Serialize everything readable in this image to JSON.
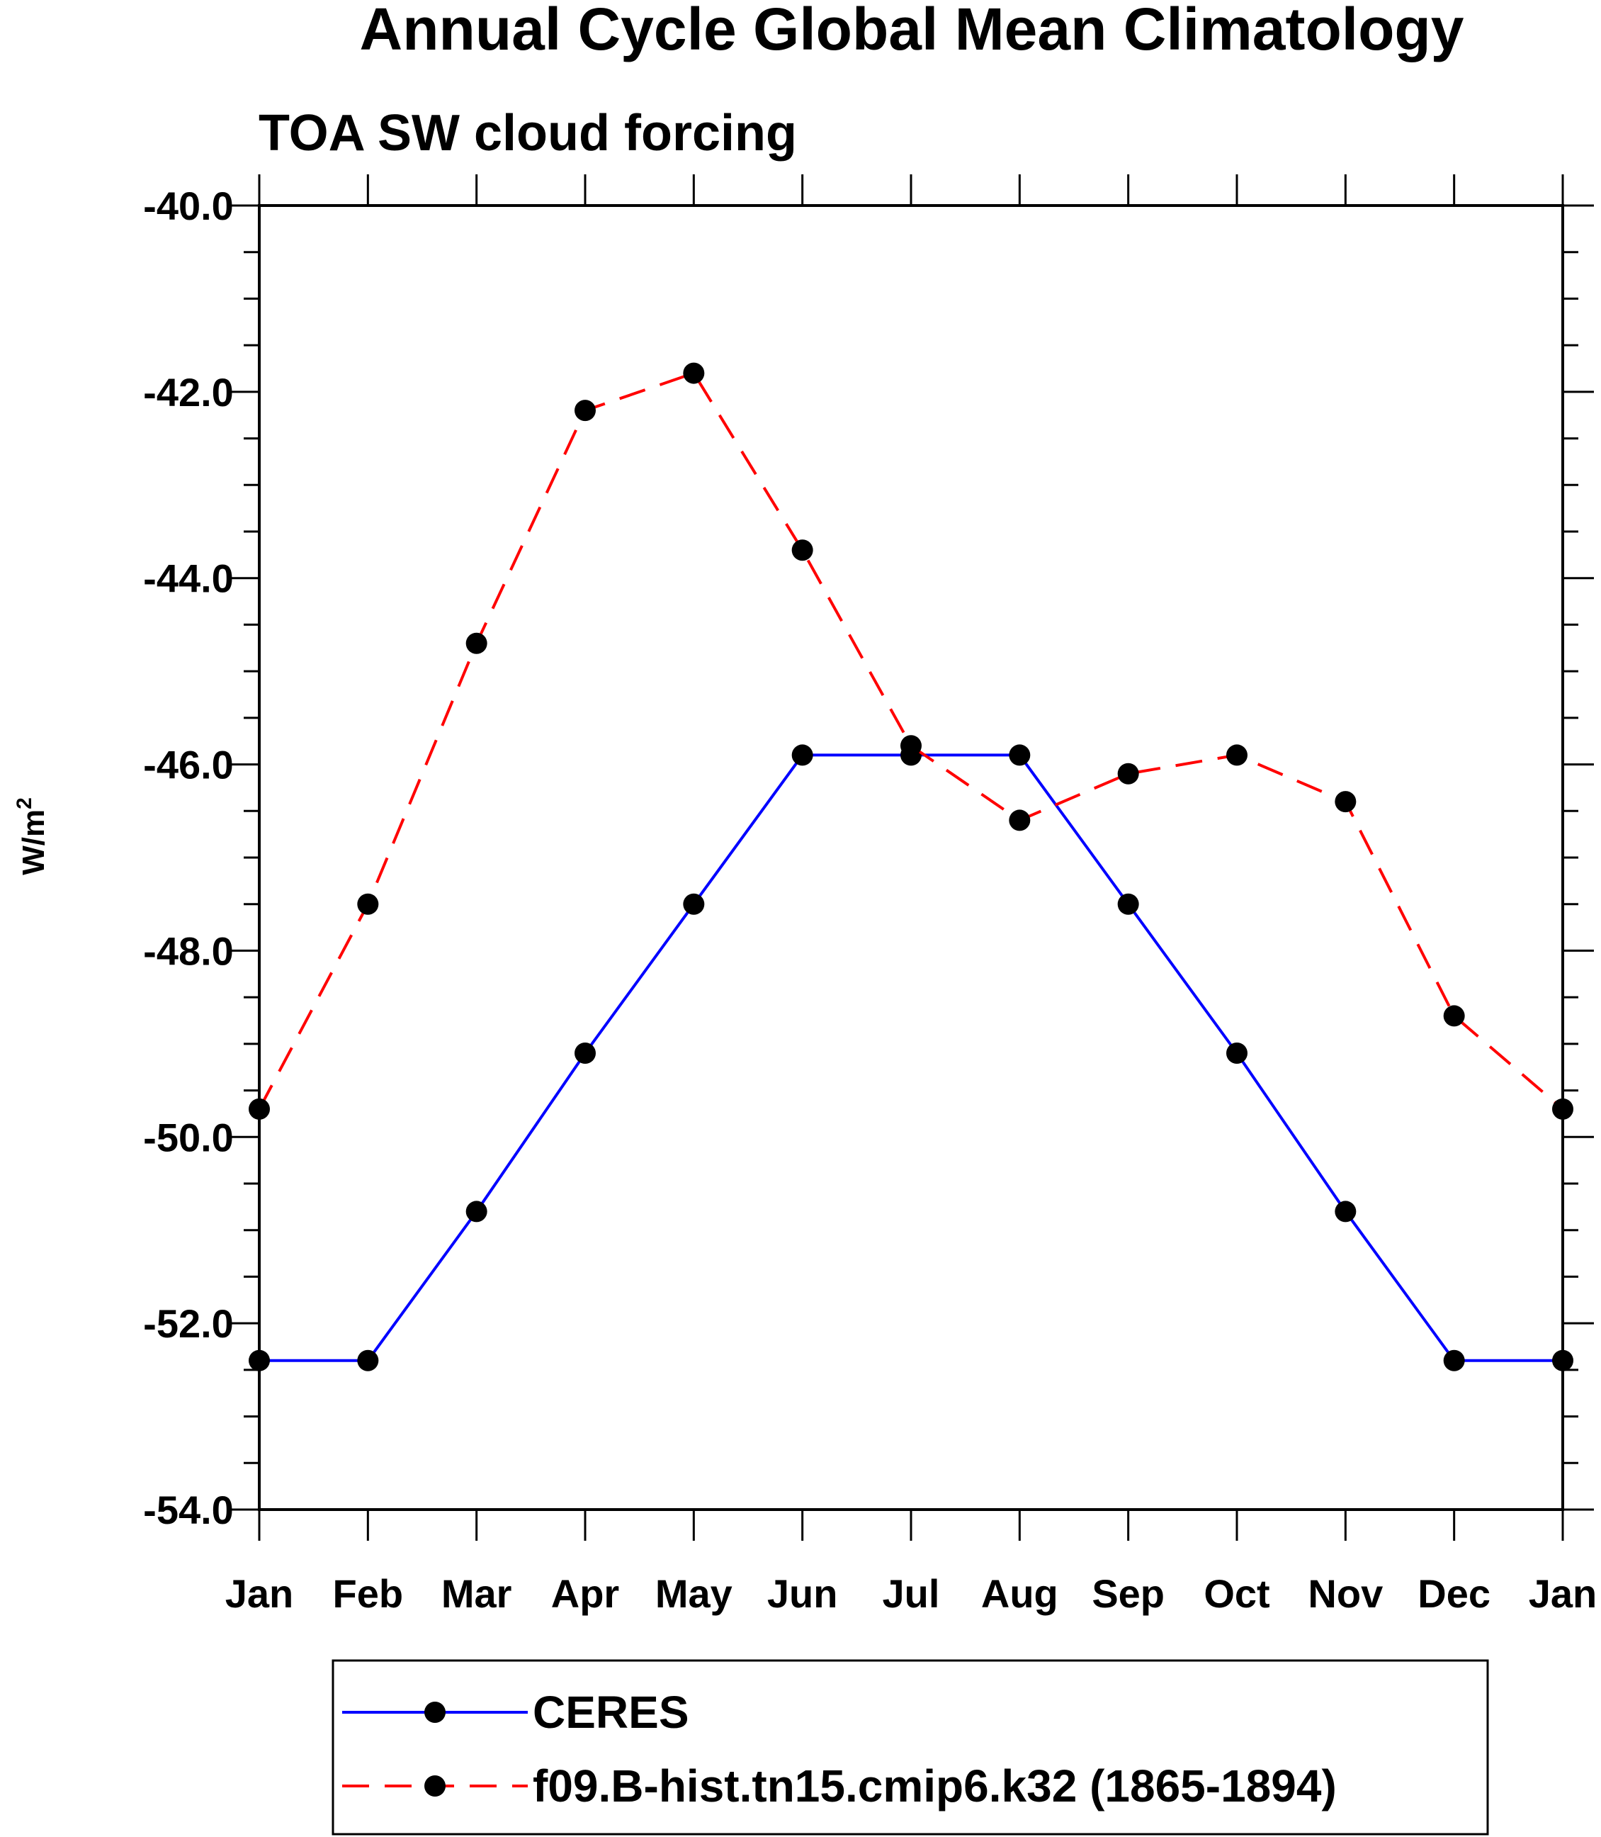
{
  "chart_data": {
    "type": "line",
    "title": "Annual Cycle Global Mean Climatology",
    "subtitle": "TOA SW cloud forcing",
    "ylabel": "W/m",
    "ylabel_superscript": "2",
    "ylim": [
      -54.0,
      -40.0
    ],
    "yticks": [
      -40.0,
      -42.0,
      -44.0,
      -46.0,
      -48.0,
      -50.0,
      -52.0,
      -54.0
    ],
    "ytick_labels": [
      "-40.0",
      "-42.0",
      "-44.0",
      "-46.0",
      "-48.0",
      "-50.0",
      "-52.0",
      "-54.0"
    ],
    "categories": [
      "Jan",
      "Feb",
      "Mar",
      "Apr",
      "May",
      "Jun",
      "Jul",
      "Aug",
      "Sep",
      "Oct",
      "Nov",
      "Dec",
      "Jan"
    ],
    "series": [
      {
        "name": "CERES",
        "color": "#0000ff",
        "dash": "solid",
        "marker": "filled-circle",
        "values": [
          -52.4,
          -52.4,
          -50.8,
          -49.1,
          -47.5,
          -45.9,
          -45.9,
          -45.9,
          -47.5,
          -49.1,
          -50.8,
          -52.4,
          -52.4
        ]
      },
      {
        "name": "f09.B-hist.tn15.cmip6.k32 (1865-1894)",
        "color": "#ff0000",
        "dash": "dashed",
        "marker": "filled-circle",
        "values": [
          -49.7,
          -47.5,
          -44.7,
          -42.2,
          -41.8,
          -43.7,
          -45.8,
          -46.6,
          -46.1,
          -45.9,
          -46.4,
          -48.7,
          -49.7
        ]
      }
    ],
    "legend_position": "bottom"
  }
}
